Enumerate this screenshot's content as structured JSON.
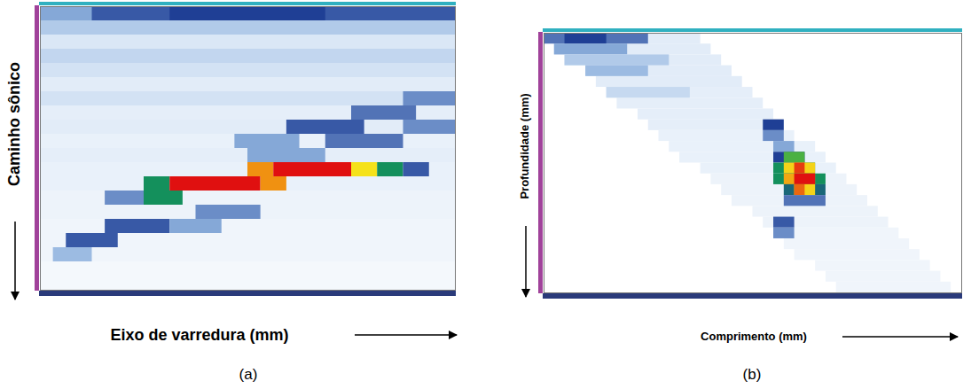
{
  "chart_data": [
    {
      "type": "heatmap",
      "title": "(a)",
      "xlabel": "Eixo de varredura (mm)",
      "ylabel": "Caminho sônico",
      "xlim": [
        0,
        32
      ],
      "ylim": [
        0,
        20
      ],
      "tick_labels": false,
      "zlim": [
        0,
        1
      ],
      "cells": [
        [
          0,
          32,
          0,
          0.3
        ],
        [
          4,
          32,
          0,
          0.45
        ],
        [
          10,
          22,
          0,
          0.5
        ],
        [
          0,
          32,
          1,
          0.2
        ],
        [
          0,
          32,
          2,
          0.1
        ],
        [
          0,
          32,
          3,
          0.16
        ],
        [
          0,
          32,
          4,
          0.12
        ],
        [
          0,
          32,
          5,
          0.08
        ],
        [
          0,
          32,
          6,
          0.12
        ],
        [
          0,
          32,
          7,
          0.07
        ],
        [
          0,
          32,
          8,
          0.08
        ],
        [
          0,
          32,
          9,
          0.06
        ],
        [
          0,
          32,
          10,
          0.07
        ],
        [
          0,
          32,
          11,
          0.06
        ],
        [
          0,
          32,
          12,
          0.06
        ],
        [
          0,
          32,
          13,
          0.05
        ],
        [
          0,
          32,
          14,
          0.05
        ],
        [
          0,
          32,
          15,
          0.04
        ],
        [
          0,
          32,
          16,
          0.04
        ],
        [
          0,
          32,
          17,
          0.04
        ],
        [
          0,
          32,
          18,
          0.03
        ],
        [
          0,
          32,
          19,
          0.03
        ],
        [
          15,
          20,
          9,
          0.3
        ],
        [
          22,
          28,
          9,
          0.4
        ],
        [
          19,
          25,
          8,
          0.45
        ],
        [
          28,
          32,
          8,
          0.35
        ],
        [
          24,
          29,
          7,
          0.4
        ],
        [
          28,
          32,
          6,
          0.35
        ],
        [
          16,
          22,
          10,
          0.3
        ],
        [
          5,
          10,
          13,
          0.35
        ],
        [
          8,
          11,
          13,
          0.6
        ],
        [
          8,
          10,
          12,
          0.6
        ],
        [
          10,
          17,
          12,
          1
        ],
        [
          17,
          19,
          12,
          0.85
        ],
        [
          16,
          18,
          11,
          0.85
        ],
        [
          18,
          24,
          11,
          1
        ],
        [
          24,
          26,
          11,
          0.74
        ],
        [
          26,
          28,
          11,
          0.6
        ],
        [
          28,
          30,
          11,
          0.45
        ],
        [
          12,
          17,
          14,
          0.35
        ],
        [
          5,
          10,
          15,
          0.45
        ],
        [
          10,
          14,
          15,
          0.3
        ],
        [
          2,
          6,
          16,
          0.45
        ],
        [
          1,
          4,
          17,
          0.25
        ]
      ]
    },
    {
      "type": "heatmap",
      "title": "(b)",
      "xlabel": "Comprimento (mm)",
      "ylabel": "Profundidade (mm)",
      "xlim": [
        0,
        40
      ],
      "ylim": [
        0,
        24
      ],
      "tick_labels": false,
      "zlim": [
        0,
        1
      ],
      "cells": [
        [
          0,
          15,
          0,
          0.08
        ],
        [
          1,
          16,
          1,
          0.08
        ],
        [
          2,
          17,
          2,
          0.08
        ],
        [
          4,
          18,
          3,
          0.08
        ],
        [
          5,
          19,
          4,
          0.08
        ],
        [
          6,
          20,
          5,
          0.07
        ],
        [
          7,
          21,
          6,
          0.07
        ],
        [
          9,
          22,
          7,
          0.07
        ],
        [
          10,
          23,
          8,
          0.07
        ],
        [
          11,
          24,
          9,
          0.06
        ],
        [
          12,
          26,
          10,
          0.06
        ],
        [
          13,
          27,
          11,
          0.06
        ],
        [
          15,
          28,
          12,
          0.06
        ],
        [
          16,
          29,
          13,
          0.05
        ],
        [
          17,
          30,
          14,
          0.05
        ],
        [
          18,
          31,
          15,
          0.05
        ],
        [
          20,
          32,
          16,
          0.05
        ],
        [
          21,
          33,
          17,
          0.05
        ],
        [
          22,
          34,
          18,
          0.04
        ],
        [
          23,
          35,
          19,
          0.04
        ],
        [
          24,
          36,
          20,
          0.04
        ],
        [
          26,
          37,
          21,
          0.04
        ],
        [
          27,
          38,
          22,
          0.04
        ],
        [
          28,
          39,
          23,
          0.04
        ],
        [
          0,
          10,
          0,
          0.4
        ],
        [
          2,
          6,
          0,
          0.5
        ],
        [
          1,
          8,
          1,
          0.3
        ],
        [
          2,
          12,
          2,
          0.2
        ],
        [
          4,
          10,
          3,
          0.25
        ],
        [
          6,
          14,
          5,
          0.15
        ],
        [
          21,
          23,
          8,
          0.5
        ],
        [
          21,
          23,
          9,
          0.35
        ],
        [
          22,
          24,
          10,
          0.3
        ],
        [
          22,
          25,
          11,
          0.5
        ],
        [
          23,
          25,
          11,
          0.65
        ],
        [
          22,
          26,
          12,
          0.6
        ],
        [
          23,
          26,
          12,
          0.76
        ],
        [
          24,
          25,
          12,
          0.95
        ],
        [
          22,
          27,
          13,
          0.6
        ],
        [
          23,
          26,
          13,
          0.82
        ],
        [
          24,
          26,
          13,
          1
        ],
        [
          23,
          27,
          14,
          0.55
        ],
        [
          24,
          26,
          14,
          0.76
        ],
        [
          24,
          25,
          14,
          0.9
        ],
        [
          23,
          27,
          15,
          0.4
        ],
        [
          22,
          24,
          17,
          0.45
        ],
        [
          22,
          24,
          18,
          0.35
        ]
      ]
    }
  ]
}
